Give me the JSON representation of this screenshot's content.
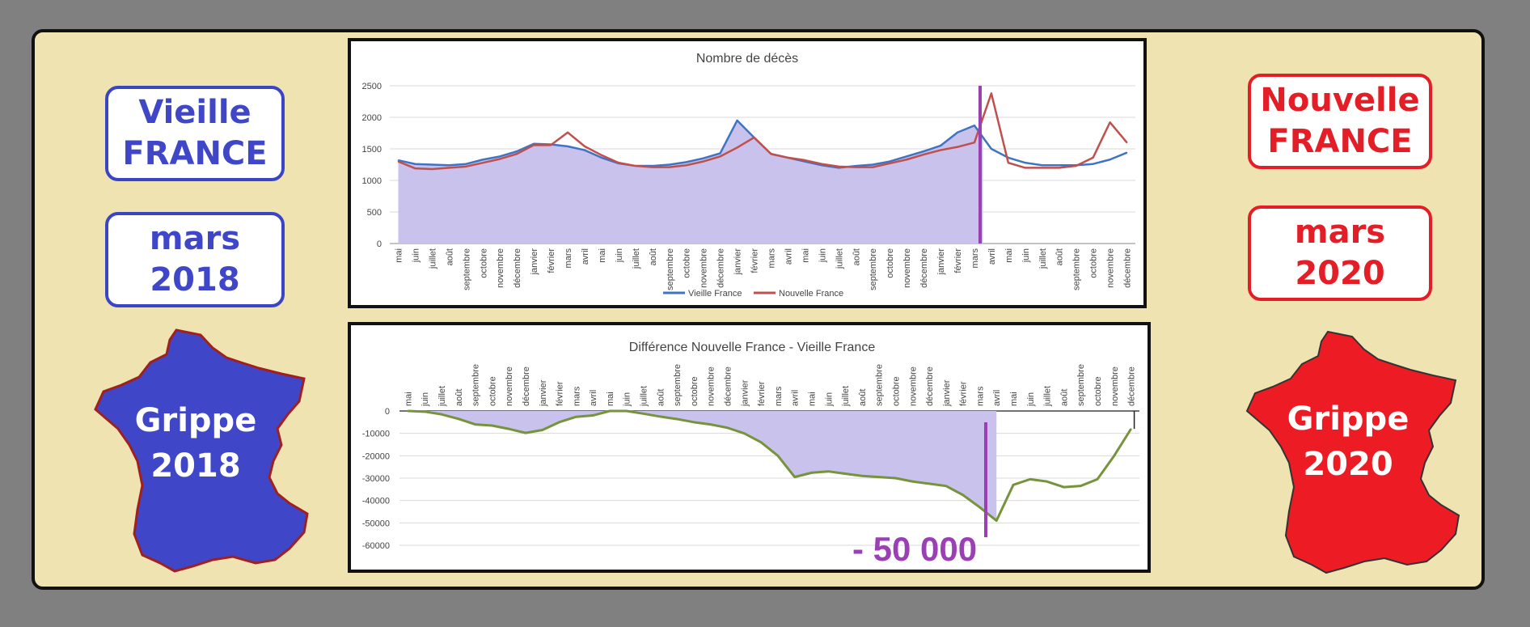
{
  "left": {
    "title_line1": "Vieille",
    "title_line2": "FRANCE",
    "date_line1": "mars",
    "date_line2": "2018",
    "map_line1": "Grippe",
    "map_line2": "2018",
    "color": "#3f46c8"
  },
  "right": {
    "title_line1": "Nouvelle",
    "title_line2": "FRANCE",
    "date_line1": "mars",
    "date_line2": "2020",
    "map_line1": "Grippe",
    "map_line2": "2020",
    "color": "#e41e26"
  },
  "annotation": "- 50 000",
  "chart_data": [
    {
      "type": "line",
      "title": "Nombre de décès",
      "ylim": [
        0,
        2500
      ],
      "yticks": [
        0,
        500,
        1000,
        1500,
        2000,
        2500
      ],
      "x_tick_labels": [
        "mai",
        "juin",
        "juillet",
        "août",
        "septembre",
        "octobre",
        "novembre",
        "décembre",
        "janvier",
        "février",
        "mars",
        "avril",
        "mai",
        "juin",
        "juillet",
        "août",
        "septembre",
        "octobre",
        "novembre",
        "décembre",
        "janvier",
        "février",
        "mars",
        "avril",
        "mai",
        "juin",
        "juillet",
        "août",
        "septembre",
        "octobre",
        "novembre",
        "décembre",
        "janvier",
        "février",
        "mars",
        "avril",
        "mai",
        "juin",
        "juillet",
        "août",
        "septembre",
        "octobre",
        "novembre",
        "décembre"
      ],
      "grid": true,
      "legend": "bottom",
      "series": [
        {
          "name": "Vieille France",
          "color": "#3f74c4",
          "values": [
            1320,
            1260,
            1250,
            1240,
            1260,
            1330,
            1380,
            1460,
            1580,
            1570,
            1540,
            1480,
            1360,
            1270,
            1230,
            1230,
            1250,
            1290,
            1350,
            1430,
            1950,
            1680,
            1420,
            1360,
            1300,
            1240,
            1200,
            1230,
            1250,
            1300,
            1380,
            1460,
            1550,
            1760,
            1870,
            1500,
            1360,
            1280,
            1240,
            1240,
            1240,
            1260,
            1330,
            1440
          ]
        },
        {
          "name": "Nouvelle France",
          "color": "#c0504d",
          "values": [
            1300,
            1190,
            1180,
            1200,
            1220,
            1280,
            1340,
            1420,
            1560,
            1560,
            1760,
            1540,
            1400,
            1280,
            1230,
            1210,
            1210,
            1240,
            1300,
            1380,
            1520,
            1680,
            1420,
            1360,
            1320,
            1260,
            1220,
            1210,
            1210,
            1270,
            1330,
            1410,
            1480,
            1530,
            1600,
            2380,
            1280,
            1200,
            1200,
            1200,
            1230,
            1360,
            1920,
            1600
          ]
        }
      ]
    },
    {
      "type": "area",
      "title": "Différence Nouvelle France - Vieille France",
      "ylim": [
        -60000,
        0
      ],
      "yticks": [
        0,
        -10000,
        -20000,
        -30000,
        -40000,
        -50000,
        -60000
      ],
      "x_tick_labels": [
        "mai",
        "juin",
        "juillet",
        "août",
        "septembre",
        "octobre",
        "novembre",
        "décembre",
        "janvier",
        "février",
        "mars",
        "avril",
        "mai",
        "juin",
        "juillet",
        "août",
        "septembre",
        "octobre",
        "novembre",
        "décembre",
        "janvier",
        "février",
        "mars",
        "avril",
        "mai",
        "juin",
        "juillet",
        "août",
        "septembre",
        "octobre",
        "novembre",
        "décembre",
        "janvier",
        "février",
        "mars",
        "avril",
        "mai",
        "juin",
        "juillet",
        "août",
        "septembre",
        "octobre",
        "novembre",
        "décembre"
      ],
      "grid": true,
      "series": [
        {
          "name": "",
          "color": "#77933c",
          "values": [
            0,
            -300,
            -1500,
            -3500,
            -6000,
            -6500,
            -8000,
            -9800,
            -8500,
            -5000,
            -2600,
            -2000,
            0,
            0,
            -1200,
            -2500,
            -3600,
            -5000,
            -6000,
            -7500,
            -10000,
            -14000,
            -20000,
            -29500,
            -27600,
            -27000,
            -28000,
            -29000,
            -29500,
            -30000,
            -31500,
            -32500,
            -33500,
            -37500,
            -43000,
            -49000,
            -33000,
            -30500,
            -31500,
            -34000,
            -33500,
            -30500,
            -20000,
            -8000
          ]
        }
      ]
    }
  ]
}
